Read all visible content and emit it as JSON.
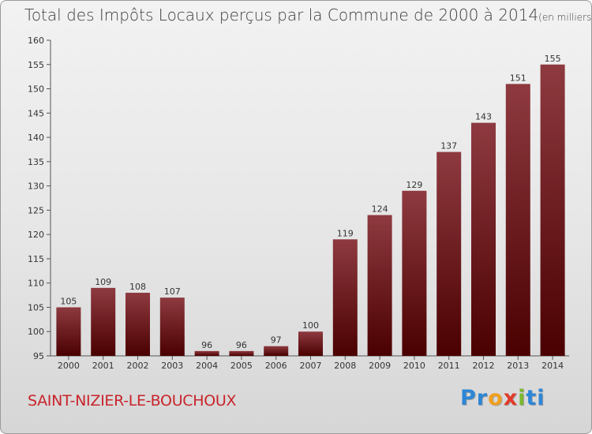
{
  "title_main": "Total des Impôts Locaux perçus par la Commune de 2000 à 2014",
  "title_unit": "(en milliers d'€)",
  "commune": "SAINT-NIZIER-LE-BOUCHOUX",
  "logo": [
    "P",
    "r",
    "o",
    "x",
    "i",
    "ti"
  ],
  "colors": {
    "bar_top": "#8e3a40",
    "bar_bottom": "#4a0000",
    "commune": "#c8242b"
  },
  "chart_data": {
    "type": "bar",
    "title": "Total des Impôts Locaux perçus par la Commune de 2000 à 2014",
    "ylabel": "en milliers d'€",
    "categories": [
      "2000",
      "2001",
      "2002",
      "2003",
      "2004",
      "2005",
      "2006",
      "2007",
      "2008",
      "2009",
      "2010",
      "2011",
      "2012",
      "2013",
      "2014"
    ],
    "values": [
      105,
      109,
      108,
      107,
      96,
      96,
      97,
      100,
      119,
      124,
      129,
      137,
      143,
      151,
      155
    ],
    "yticks": [
      95,
      100,
      105,
      110,
      115,
      120,
      125,
      130,
      135,
      140,
      145,
      150,
      155,
      160
    ],
    "ylim": [
      95,
      160
    ]
  }
}
